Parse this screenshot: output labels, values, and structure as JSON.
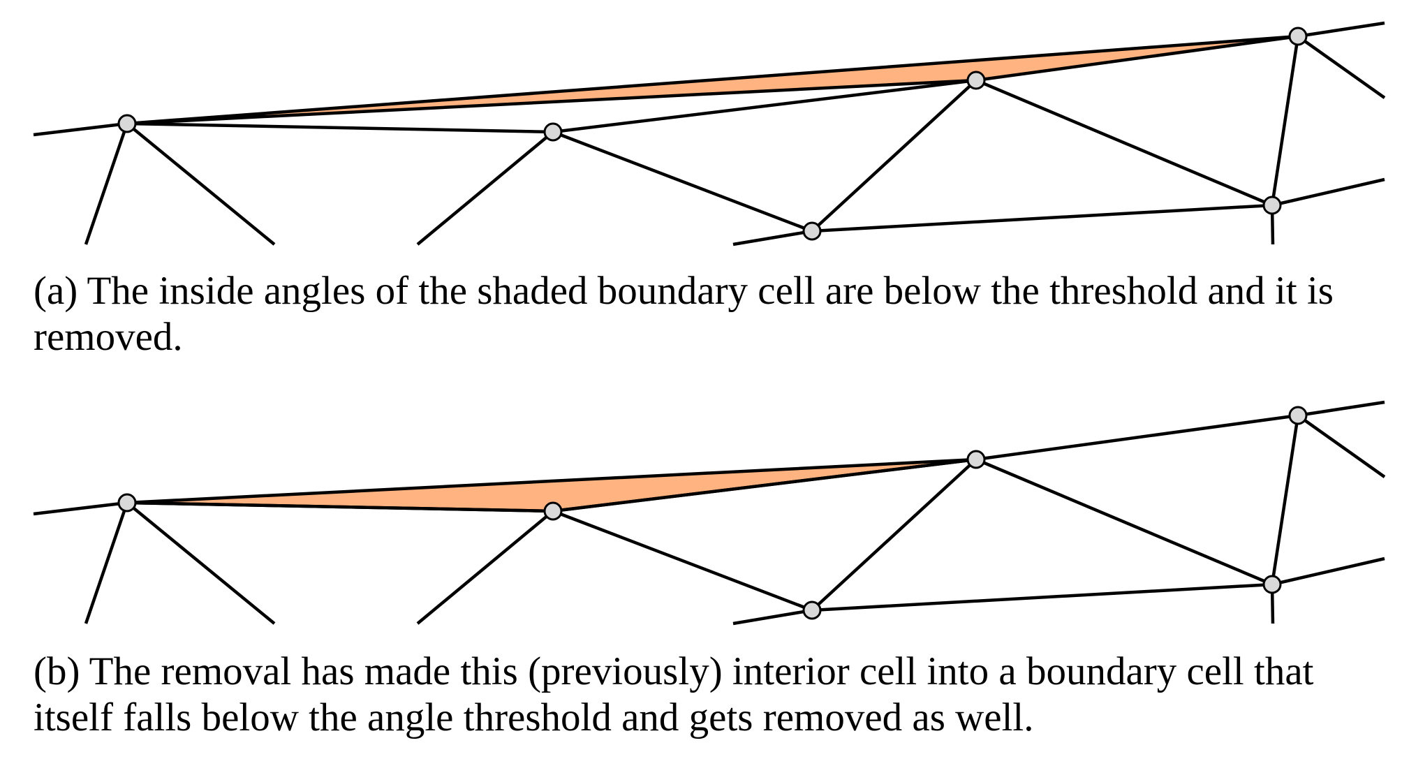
{
  "colors": {
    "shaded_cell": "#ffb380",
    "edge": "#000000",
    "vertex_fill": "#d9d9d9",
    "background": "#ffffff"
  },
  "figure": {
    "panels": [
      {
        "id": "a",
        "caption": "(a) The inside angles of the shaded boundary cell are below the threshold and it is removed.",
        "shaded_cell": "boundary cell (to be removed)"
      },
      {
        "id": "b",
        "caption": "(b) The removal has made this (previously) interior cell into a boundary cell that itself falls below the angle threshold and gets removed as well.",
        "shaded_cell": "previously interior cell (to be removed)"
      }
    ]
  }
}
